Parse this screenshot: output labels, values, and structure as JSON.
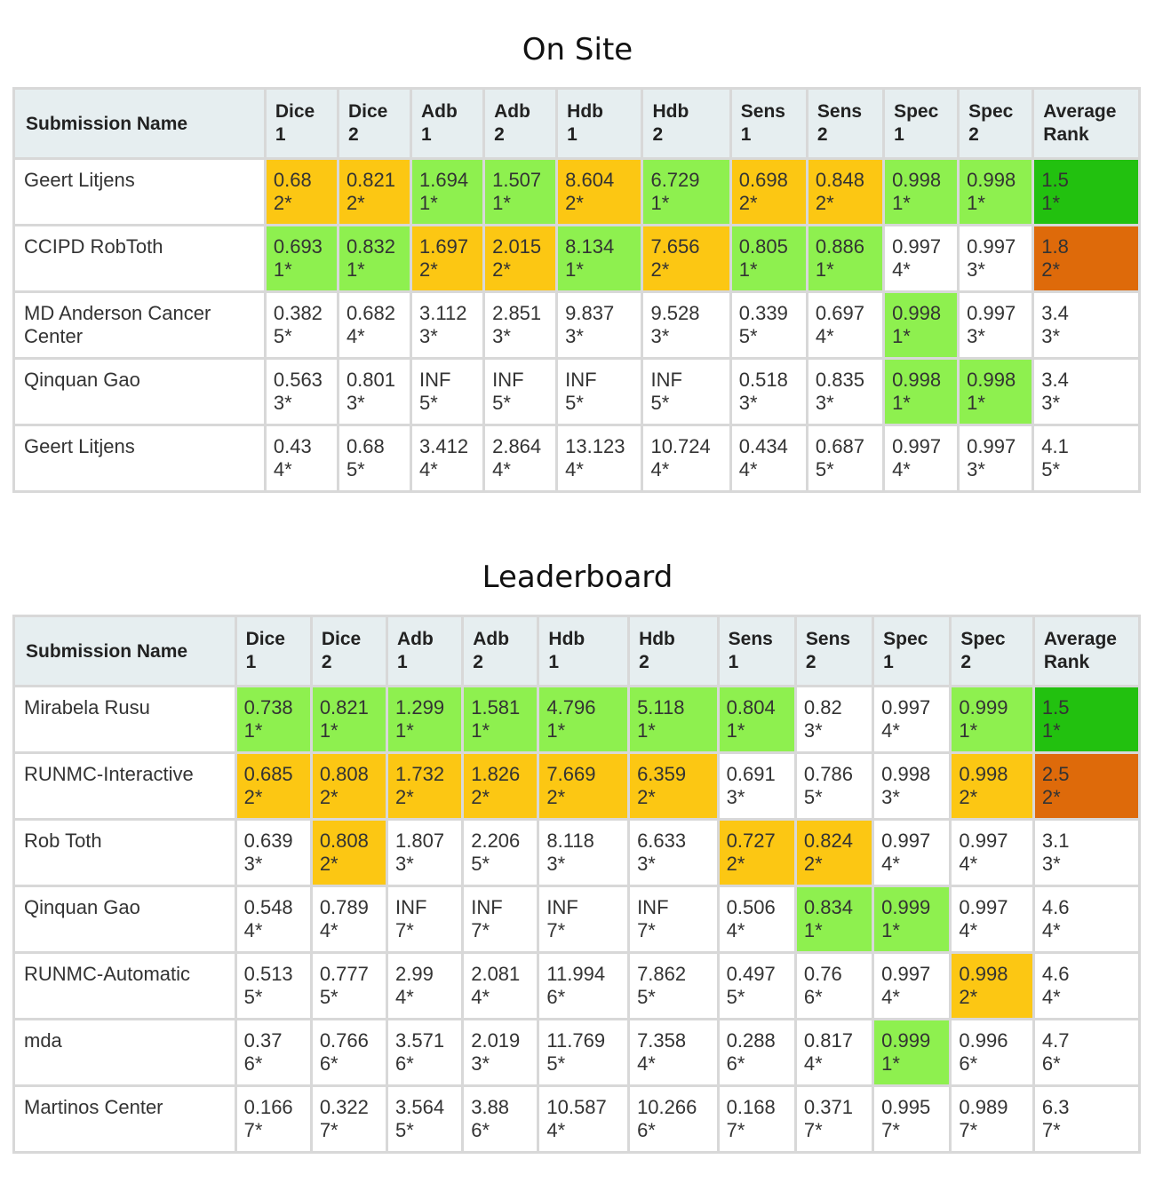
{
  "colors": {
    "green": "#8ef04f",
    "yellow": "#fcc713",
    "dark-green": "#22c10f",
    "orange": "#de6a0a",
    "header_bg": "#e6eef0"
  },
  "tables": [
    {
      "title": "On Site",
      "headers": [
        "Submission Name",
        "Dice\n1",
        "Dice\n2",
        "Adb\n1",
        "Adb\n2",
        "Hdb\n1",
        "Hdb\n2",
        "Sens\n1",
        "Sens\n2",
        "Spec\n1",
        "Spec\n2",
        "Average\nRank"
      ],
      "rows": [
        {
          "name": "Geert Litjens",
          "cells": [
            {
              "v": "0.68",
              "r": "2*",
              "hl": "yellow"
            },
            {
              "v": "0.821",
              "r": "2*",
              "hl": "yellow"
            },
            {
              "v": "1.694",
              "r": "1*",
              "hl": "green"
            },
            {
              "v": "1.507",
              "r": "1*",
              "hl": "green"
            },
            {
              "v": "8.604",
              "r": "2*",
              "hl": "yellow"
            },
            {
              "v": "6.729",
              "r": "1*",
              "hl": "green"
            },
            {
              "v": "0.698",
              "r": "2*",
              "hl": "yellow"
            },
            {
              "v": "0.848",
              "r": "2*",
              "hl": "yellow"
            },
            {
              "v": "0.998",
              "r": "1*",
              "hl": "green"
            },
            {
              "v": "0.998",
              "r": "1*",
              "hl": "green"
            },
            {
              "v": "1.5",
              "r": "1*",
              "hl": "dark-green"
            }
          ]
        },
        {
          "name": "CCIPD RobToth",
          "cells": [
            {
              "v": "0.693",
              "r": "1*",
              "hl": "green"
            },
            {
              "v": "0.832",
              "r": "1*",
              "hl": "green"
            },
            {
              "v": "1.697",
              "r": "2*",
              "hl": "yellow"
            },
            {
              "v": "2.015",
              "r": "2*",
              "hl": "yellow"
            },
            {
              "v": "8.134",
              "r": "1*",
              "hl": "green"
            },
            {
              "v": "7.656",
              "r": "2*",
              "hl": "yellow"
            },
            {
              "v": "0.805",
              "r": "1*",
              "hl": "green"
            },
            {
              "v": "0.886",
              "r": "1*",
              "hl": "green"
            },
            {
              "v": "0.997",
              "r": "4*",
              "hl": ""
            },
            {
              "v": "0.997",
              "r": "3*",
              "hl": ""
            },
            {
              "v": "1.8",
              "r": "2*",
              "hl": "orange"
            }
          ]
        },
        {
          "name": "MD Anderson Cancer Center",
          "cells": [
            {
              "v": "0.382",
              "r": "5*",
              "hl": ""
            },
            {
              "v": "0.682",
              "r": "4*",
              "hl": ""
            },
            {
              "v": "3.112",
              "r": "3*",
              "hl": ""
            },
            {
              "v": "2.851",
              "r": "3*",
              "hl": ""
            },
            {
              "v": "9.837",
              "r": "3*",
              "hl": ""
            },
            {
              "v": "9.528",
              "r": "3*",
              "hl": ""
            },
            {
              "v": "0.339",
              "r": "5*",
              "hl": ""
            },
            {
              "v": "0.697",
              "r": "4*",
              "hl": ""
            },
            {
              "v": "0.998",
              "r": "1*",
              "hl": "green"
            },
            {
              "v": "0.997",
              "r": "3*",
              "hl": ""
            },
            {
              "v": "3.4",
              "r": "3*",
              "hl": ""
            }
          ]
        },
        {
          "name": "Qinquan Gao",
          "cells": [
            {
              "v": "0.563",
              "r": "3*",
              "hl": ""
            },
            {
              "v": "0.801",
              "r": "3*",
              "hl": ""
            },
            {
              "v": "INF",
              "r": "5*",
              "hl": ""
            },
            {
              "v": "INF",
              "r": "5*",
              "hl": ""
            },
            {
              "v": "INF",
              "r": "5*",
              "hl": ""
            },
            {
              "v": "INF",
              "r": "5*",
              "hl": ""
            },
            {
              "v": "0.518",
              "r": "3*",
              "hl": ""
            },
            {
              "v": "0.835",
              "r": "3*",
              "hl": ""
            },
            {
              "v": "0.998",
              "r": "1*",
              "hl": "green"
            },
            {
              "v": "0.998",
              "r": "1*",
              "hl": "green"
            },
            {
              "v": "3.4",
              "r": "3*",
              "hl": ""
            }
          ]
        },
        {
          "name": "Geert Litjens",
          "cells": [
            {
              "v": "0.43",
              "r": "4*",
              "hl": ""
            },
            {
              "v": "0.68",
              "r": "5*",
              "hl": ""
            },
            {
              "v": "3.412",
              "r": "4*",
              "hl": ""
            },
            {
              "v": "2.864",
              "r": "4*",
              "hl": ""
            },
            {
              "v": "13.123",
              "r": "4*",
              "hl": ""
            },
            {
              "v": "10.724",
              "r": "4*",
              "hl": ""
            },
            {
              "v": "0.434",
              "r": "4*",
              "hl": ""
            },
            {
              "v": "0.687",
              "r": "5*",
              "hl": ""
            },
            {
              "v": "0.997",
              "r": "4*",
              "hl": ""
            },
            {
              "v": "0.997",
              "r": "3*",
              "hl": ""
            },
            {
              "v": "4.1",
              "r": "5*",
              "hl": ""
            }
          ]
        }
      ]
    },
    {
      "title": "Leaderboard",
      "headers": [
        "Submission Name",
        "Dice\n1",
        "Dice\n2",
        "Adb\n1",
        "Adb\n2",
        "Hdb\n1",
        "Hdb\n2",
        "Sens\n1",
        "Sens\n2",
        "Spec\n1",
        "Spec\n2",
        "Average\nRank"
      ],
      "rows": [
        {
          "name": "Mirabela Rusu",
          "cells": [
            {
              "v": "0.738",
              "r": "1*",
              "hl": "green"
            },
            {
              "v": "0.821",
              "r": "1*",
              "hl": "green"
            },
            {
              "v": "1.299",
              "r": "1*",
              "hl": "green"
            },
            {
              "v": "1.581",
              "r": "1*",
              "hl": "green"
            },
            {
              "v": "4.796",
              "r": "1*",
              "hl": "green"
            },
            {
              "v": "5.118",
              "r": "1*",
              "hl": "green"
            },
            {
              "v": "0.804",
              "r": "1*",
              "hl": "green"
            },
            {
              "v": "0.82",
              "r": "3*",
              "hl": ""
            },
            {
              "v": "0.997",
              "r": "4*",
              "hl": ""
            },
            {
              "v": "0.999",
              "r": "1*",
              "hl": "green"
            },
            {
              "v": "1.5",
              "r": "1*",
              "hl": "dark-green"
            }
          ]
        },
        {
          "name": "RUNMC-Interactive",
          "cells": [
            {
              "v": "0.685",
              "r": "2*",
              "hl": "yellow"
            },
            {
              "v": "0.808",
              "r": "2*",
              "hl": "yellow"
            },
            {
              "v": "1.732",
              "r": "2*",
              "hl": "yellow"
            },
            {
              "v": "1.826",
              "r": "2*",
              "hl": "yellow"
            },
            {
              "v": "7.669",
              "r": "2*",
              "hl": "yellow"
            },
            {
              "v": "6.359",
              "r": "2*",
              "hl": "yellow"
            },
            {
              "v": "0.691",
              "r": "3*",
              "hl": ""
            },
            {
              "v": "0.786",
              "r": "5*",
              "hl": ""
            },
            {
              "v": "0.998",
              "r": "3*",
              "hl": ""
            },
            {
              "v": "0.998",
              "r": "2*",
              "hl": "yellow"
            },
            {
              "v": "2.5",
              "r": "2*",
              "hl": "orange"
            }
          ]
        },
        {
          "name": "Rob Toth",
          "cells": [
            {
              "v": "0.639",
              "r": "3*",
              "hl": ""
            },
            {
              "v": "0.808",
              "r": "2*",
              "hl": "yellow"
            },
            {
              "v": "1.807",
              "r": "3*",
              "hl": ""
            },
            {
              "v": "2.206",
              "r": "5*",
              "hl": ""
            },
            {
              "v": "8.118",
              "r": "3*",
              "hl": ""
            },
            {
              "v": "6.633",
              "r": "3*",
              "hl": ""
            },
            {
              "v": "0.727",
              "r": "2*",
              "hl": "yellow"
            },
            {
              "v": "0.824",
              "r": "2*",
              "hl": "yellow"
            },
            {
              "v": "0.997",
              "r": "4*",
              "hl": ""
            },
            {
              "v": "0.997",
              "r": "4*",
              "hl": ""
            },
            {
              "v": "3.1",
              "r": "3*",
              "hl": ""
            }
          ]
        },
        {
          "name": "Qinquan Gao",
          "cells": [
            {
              "v": "0.548",
              "r": "4*",
              "hl": ""
            },
            {
              "v": "0.789",
              "r": "4*",
              "hl": ""
            },
            {
              "v": "INF",
              "r": "7*",
              "hl": ""
            },
            {
              "v": "INF",
              "r": "7*",
              "hl": ""
            },
            {
              "v": "INF",
              "r": "7*",
              "hl": ""
            },
            {
              "v": "INF",
              "r": "7*",
              "hl": ""
            },
            {
              "v": "0.506",
              "r": "4*",
              "hl": ""
            },
            {
              "v": "0.834",
              "r": "1*",
              "hl": "green"
            },
            {
              "v": "0.999",
              "r": "1*",
              "hl": "green"
            },
            {
              "v": "0.997",
              "r": "4*",
              "hl": ""
            },
            {
              "v": "4.6",
              "r": "4*",
              "hl": ""
            }
          ]
        },
        {
          "name": "RUNMC-Automatic",
          "cells": [
            {
              "v": "0.513",
              "r": "5*",
              "hl": ""
            },
            {
              "v": "0.777",
              "r": "5*",
              "hl": ""
            },
            {
              "v": "2.99",
              "r": "4*",
              "hl": ""
            },
            {
              "v": "2.081",
              "r": "4*",
              "hl": ""
            },
            {
              "v": "11.994",
              "r": "6*",
              "hl": ""
            },
            {
              "v": "7.862",
              "r": "5*",
              "hl": ""
            },
            {
              "v": "0.497",
              "r": "5*",
              "hl": ""
            },
            {
              "v": "0.76",
              "r": "6*",
              "hl": ""
            },
            {
              "v": "0.997",
              "r": "4*",
              "hl": ""
            },
            {
              "v": "0.998",
              "r": "2*",
              "hl": "yellow"
            },
            {
              "v": "4.6",
              "r": "4*",
              "hl": ""
            }
          ]
        },
        {
          "name": "mda",
          "cells": [
            {
              "v": "0.37",
              "r": "6*",
              "hl": ""
            },
            {
              "v": "0.766",
              "r": "6*",
              "hl": ""
            },
            {
              "v": "3.571",
              "r": "6*",
              "hl": ""
            },
            {
              "v": "2.019",
              "r": "3*",
              "hl": ""
            },
            {
              "v": "11.769",
              "r": "5*",
              "hl": ""
            },
            {
              "v": "7.358",
              "r": "4*",
              "hl": ""
            },
            {
              "v": "0.288",
              "r": "6*",
              "hl": ""
            },
            {
              "v": "0.817",
              "r": "4*",
              "hl": ""
            },
            {
              "v": "0.999",
              "r": "1*",
              "hl": "green"
            },
            {
              "v": "0.996",
              "r": "6*",
              "hl": ""
            },
            {
              "v": "4.7",
              "r": "6*",
              "hl": ""
            }
          ]
        },
        {
          "name": "Martinos Center",
          "cells": [
            {
              "v": "0.166",
              "r": "7*",
              "hl": ""
            },
            {
              "v": "0.322",
              "r": "7*",
              "hl": ""
            },
            {
              "v": "3.564",
              "r": "5*",
              "hl": ""
            },
            {
              "v": "3.88",
              "r": "6*",
              "hl": ""
            },
            {
              "v": "10.587",
              "r": "4*",
              "hl": ""
            },
            {
              "v": "10.266",
              "r": "6*",
              "hl": ""
            },
            {
              "v": "0.168",
              "r": "7*",
              "hl": ""
            },
            {
              "v": "0.371",
              "r": "7*",
              "hl": ""
            },
            {
              "v": "0.995",
              "r": "7*",
              "hl": ""
            },
            {
              "v": "0.989",
              "r": "7*",
              "hl": ""
            },
            {
              "v": "6.3",
              "r": "7*",
              "hl": ""
            }
          ]
        }
      ]
    }
  ]
}
